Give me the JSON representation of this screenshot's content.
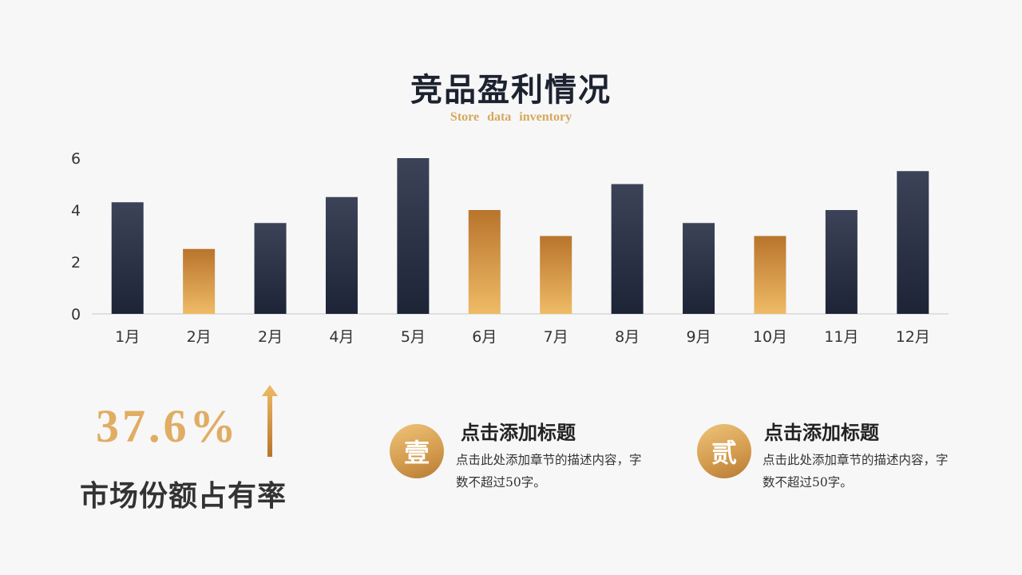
{
  "slide": {
    "title": "竞品盈利情况",
    "subtitle": "Store data inventory"
  },
  "colors": {
    "navy_top": "#3c4358",
    "navy_bottom": "#1d2436",
    "gold_top": "#b8742c",
    "gold_bottom": "#efbb66",
    "stat_gold": "#e0ad62",
    "axis_line": "#c8c8c8"
  },
  "chart_data": {
    "type": "bar",
    "categories": [
      "1月",
      "2月",
      "2月",
      "4月",
      "5月",
      "6月",
      "7月",
      "8月",
      "9月",
      "10月",
      "11月",
      "12月"
    ],
    "values": [
      4.3,
      2.5,
      3.5,
      4.5,
      6.0,
      4.0,
      3.0,
      5.0,
      3.5,
      3.0,
      4.0,
      5.5
    ],
    "bar_colors": [
      "navy",
      "gold",
      "navy",
      "navy",
      "navy",
      "gold",
      "gold",
      "navy",
      "navy",
      "gold",
      "navy",
      "navy"
    ],
    "title": "",
    "xlabel": "",
    "ylabel": "",
    "ylim": [
      0,
      6
    ],
    "yticks": [
      0,
      2,
      4,
      6
    ],
    "grid": false,
    "legend": "none"
  },
  "stat": {
    "value": "37.6%",
    "label": "市场份额占有率",
    "arrow_icon": "up-arrow-icon"
  },
  "items": [
    {
      "badge": "壹",
      "title": "点击添加标题",
      "desc": "点击此处添加章节的描述内容，字数不超过50字。"
    },
    {
      "badge": "贰",
      "title": "点击添加标题",
      "desc": "点击此处添加章节的描述内容，字数不超过50字。"
    }
  ]
}
